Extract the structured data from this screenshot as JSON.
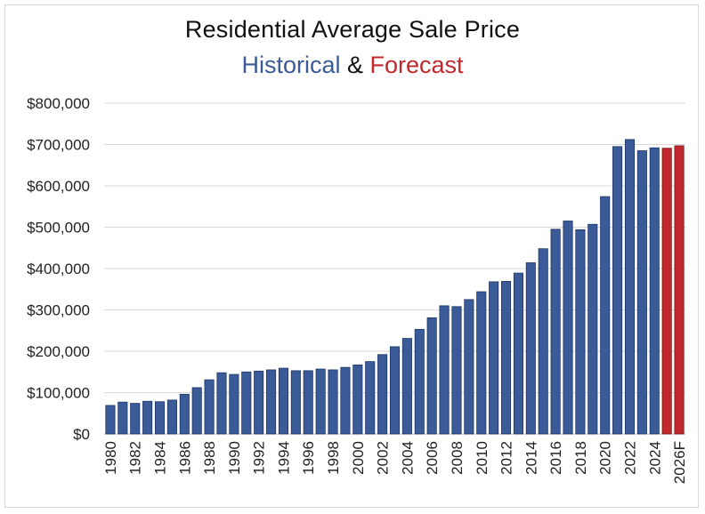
{
  "chart_data": {
    "type": "bar",
    "title": "Residential Average Sale Price",
    "subtitle": {
      "historical": "Historical",
      "connector": " & ",
      "forecast": "Forecast"
    },
    "colors": {
      "historical": "#3a5a98",
      "forecast": "#c0282d",
      "grid": "#d9d9d9"
    },
    "ylim": [
      0,
      800000
    ],
    "yticks": [
      0,
      100000,
      200000,
      300000,
      400000,
      500000,
      600000,
      700000,
      800000
    ],
    "ytick_labels": [
      "$0",
      "$100,000",
      "$200,000",
      "$300,000",
      "$400,000",
      "$500,000",
      "$600,000",
      "$700,000",
      "$800,000"
    ],
    "grid": true,
    "categories": [
      "1980",
      "1981",
      "1982",
      "1983",
      "1984",
      "1985",
      "1986",
      "1987",
      "1988",
      "1989",
      "1990",
      "1991",
      "1992",
      "1993",
      "1994",
      "1995",
      "1996",
      "1997",
      "1998",
      "1999",
      "2000",
      "2001",
      "2002",
      "2003",
      "2004",
      "2005",
      "2006",
      "2007",
      "2008",
      "2009",
      "2010",
      "2011",
      "2012",
      "2013",
      "2014",
      "2015",
      "2016",
      "2017",
      "2018",
      "2019",
      "2020",
      "2021",
      "2022",
      "2023",
      "2024",
      "2025F",
      "2026F"
    ],
    "xtick_labels": [
      "1980",
      "",
      "1982",
      "",
      "1984",
      "",
      "1986",
      "",
      "1988",
      "",
      "1990",
      "",
      "1992",
      "",
      "1994",
      "",
      "1996",
      "",
      "1998",
      "",
      "2000",
      "",
      "2002",
      "",
      "2004",
      "",
      "2006",
      "",
      "2008",
      "",
      "2010",
      "",
      "2012",
      "",
      "2014",
      "",
      "2016",
      "",
      "2018",
      "",
      "2020",
      "",
      "2022",
      "",
      "2024",
      "",
      "2026F"
    ],
    "values": [
      69000,
      77000,
      74000,
      79000,
      78000,
      82000,
      96000,
      112000,
      131000,
      148000,
      144000,
      150000,
      152000,
      155000,
      159000,
      153000,
      153000,
      157000,
      155000,
      161000,
      167000,
      175000,
      192000,
      211000,
      231000,
      253000,
      281000,
      310000,
      308000,
      325000,
      344000,
      368000,
      369000,
      389000,
      414000,
      448000,
      495000,
      515000,
      494000,
      507000,
      574000,
      695000,
      712000,
      685000,
      692000,
      691000,
      697000
    ],
    "forecast": [
      false,
      false,
      false,
      false,
      false,
      false,
      false,
      false,
      false,
      false,
      false,
      false,
      false,
      false,
      false,
      false,
      false,
      false,
      false,
      false,
      false,
      false,
      false,
      false,
      false,
      false,
      false,
      false,
      false,
      false,
      false,
      false,
      false,
      false,
      false,
      false,
      false,
      false,
      false,
      false,
      false,
      false,
      false,
      false,
      false,
      true,
      true
    ]
  }
}
